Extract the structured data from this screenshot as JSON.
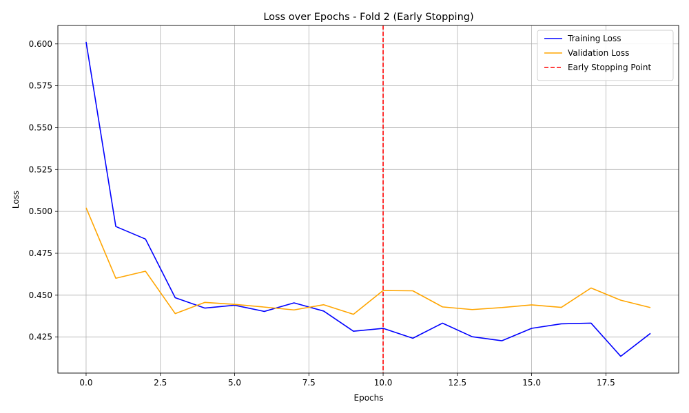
{
  "chart_data": {
    "type": "line",
    "title": "Loss over Epochs - Fold 2 (Early Stopping)",
    "xlabel": "Epochs",
    "ylabel": "Loss",
    "xlim": [
      -0.95,
      19.95
    ],
    "ylim": [
      0.4035,
      0.611
    ],
    "xticks": [
      0.0,
      2.5,
      5.0,
      7.5,
      10.0,
      12.5,
      15.0,
      17.5
    ],
    "xtick_labels": [
      "0.0",
      "2.5",
      "5.0",
      "7.5",
      "10.0",
      "12.5",
      "15.0",
      "17.5"
    ],
    "yticks": [
      0.425,
      0.45,
      0.475,
      0.5,
      0.525,
      0.55,
      0.575,
      0.6
    ],
    "ytick_labels": [
      "0.425",
      "0.450",
      "0.475",
      "0.500",
      "0.525",
      "0.550",
      "0.575",
      "0.600"
    ],
    "grid": true,
    "legend_position": "top-right",
    "x": [
      0,
      1,
      2,
      3,
      4,
      5,
      6,
      7,
      8,
      9,
      10,
      11,
      12,
      13,
      14,
      15,
      16,
      17,
      18,
      19
    ],
    "series": [
      {
        "name": "Training Loss",
        "color": "#0000ff",
        "values": [
          0.6012,
          0.491,
          0.4835,
          0.4485,
          0.4423,
          0.444,
          0.4403,
          0.4454,
          0.4405,
          0.4285,
          0.4302,
          0.4243,
          0.4333,
          0.4252,
          0.4228,
          0.4302,
          0.4329,
          0.4333,
          0.4135,
          0.4272
        ]
      },
      {
        "name": "Validation Loss",
        "color": "#ffa500",
        "values": [
          0.5022,
          0.4601,
          0.4643,
          0.439,
          0.4457,
          0.4445,
          0.4429,
          0.4412,
          0.4443,
          0.4386,
          0.4528,
          0.4526,
          0.443,
          0.4414,
          0.4426,
          0.4442,
          0.4427,
          0.4543,
          0.447,
          0.4426
        ]
      }
    ],
    "annotations": [
      {
        "name": "Early Stopping Point",
        "type": "vline",
        "x": 10,
        "color": "#ff0000",
        "style": "dashed"
      }
    ]
  }
}
